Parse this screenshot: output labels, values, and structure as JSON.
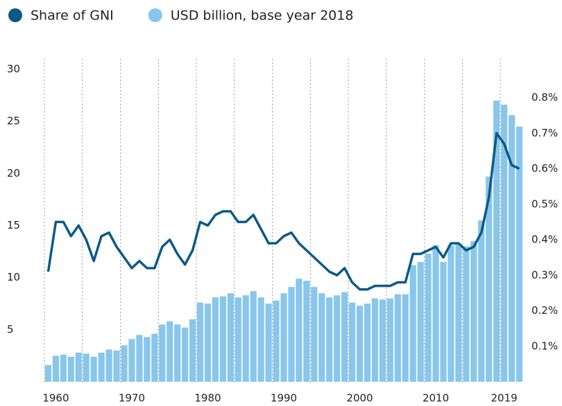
{
  "chart_data": {
    "type": "bar-line",
    "categories": [
      null,
      "1960",
      null,
      null,
      null,
      null,
      null,
      null,
      null,
      null,
      null,
      "1970",
      null,
      null,
      null,
      null,
      null,
      null,
      null,
      null,
      null,
      "1980",
      null,
      null,
      null,
      null,
      null,
      null,
      null,
      null,
      null,
      "1990",
      null,
      null,
      null,
      null,
      null,
      null,
      null,
      null,
      null,
      "2000",
      null,
      null,
      null,
      null,
      null,
      null,
      null,
      null,
      null,
      "2010",
      null,
      null,
      null,
      null,
      null,
      null,
      null,
      null,
      "2019",
      null,
      null
    ],
    "series": [
      {
        "name": "USD billion, base year 2018",
        "type": "bar",
        "color": "#88c6ec",
        "values": [
          1.6,
          2.5,
          2.6,
          2.4,
          2.8,
          2.7,
          2.4,
          2.8,
          3.1,
          3.0,
          3.5,
          4.1,
          4.5,
          4.3,
          4.6,
          5.5,
          5.8,
          5.5,
          5.2,
          6.0,
          7.6,
          7.5,
          8.1,
          8.2,
          8.5,
          8.1,
          8.3,
          8.7,
          8.1,
          7.5,
          7.8,
          8.5,
          9.1,
          9.9,
          9.7,
          9.1,
          8.5,
          8.1,
          8.3,
          8.6,
          7.6,
          7.3,
          7.5,
          8.0,
          7.9,
          8.0,
          8.4,
          8.4,
          11.2,
          11.5,
          12.3,
          13.1,
          11.5,
          13.1,
          13.2,
          13.0,
          13.5,
          15.5,
          19.7,
          27.0,
          26.6,
          25.6,
          24.5
        ]
      },
      {
        "name": "Share of GNI",
        "type": "line",
        "axis": "y2",
        "color": "#0b5a85",
        "values": [
          0.31,
          0.45,
          0.45,
          0.41,
          0.44,
          0.4,
          0.34,
          0.41,
          0.42,
          0.38,
          0.35,
          0.32,
          0.34,
          0.32,
          0.32,
          0.38,
          0.4,
          0.36,
          0.33,
          0.37,
          0.45,
          0.44,
          0.47,
          0.48,
          0.48,
          0.45,
          0.45,
          0.47,
          0.43,
          0.39,
          0.39,
          0.41,
          0.42,
          0.39,
          0.37,
          0.35,
          0.33,
          0.31,
          0.3,
          0.32,
          0.28,
          0.26,
          0.26,
          0.27,
          0.27,
          0.27,
          0.28,
          0.28,
          0.36,
          0.36,
          0.37,
          0.38,
          0.35,
          0.39,
          0.39,
          0.37,
          0.38,
          0.42,
          0.52,
          0.7,
          0.67,
          0.61,
          0.6
        ]
      }
    ],
    "ylim": [
      0,
      30
    ],
    "yticks": [
      5,
      10,
      15,
      20,
      25,
      30
    ],
    "y2lim": [
      0,
      0.88
    ],
    "y2ticks": [
      {
        "value": 0.1,
        "label": "0.1%"
      },
      {
        "value": 0.2,
        "label": "0.2%"
      },
      {
        "value": 0.3,
        "label": "0.3%"
      },
      {
        "value": 0.4,
        "label": "0.4%"
      },
      {
        "value": 0.5,
        "label": "0.5%"
      },
      {
        "value": 0.6,
        "label": "0.6%"
      },
      {
        "value": 0.7,
        "label": "0.7%"
      },
      {
        "value": 0.8,
        "label": "0.8%"
      }
    ],
    "legend": "top-left"
  }
}
